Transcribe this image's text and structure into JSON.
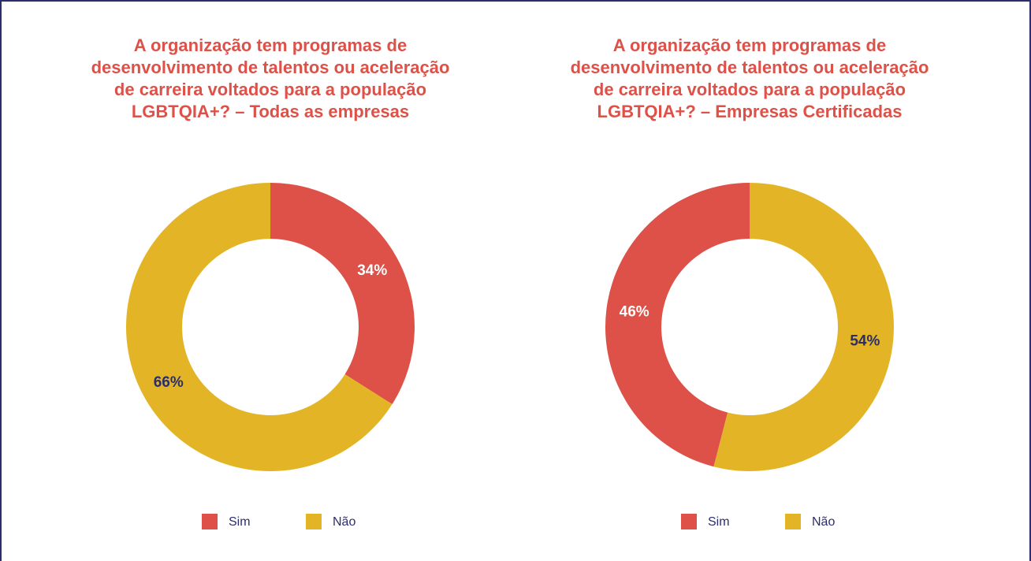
{
  "chart_data": [
    {
      "type": "pie",
      "title": "A organização tem programas de desenvolvimento de talentos ou aceleração de carreira voltados para a população LGBTQIA+? – Todas as empresas",
      "categories": [
        "Sim",
        "Não"
      ],
      "values": [
        34,
        66
      ],
      "value_labels": [
        "34%",
        "66%"
      ],
      "colors": [
        "#dd5148",
        "#e3b526"
      ],
      "label_colors": [
        "#ffffff",
        "#2b2e6b"
      ],
      "direction": "clockwise"
    },
    {
      "type": "pie",
      "title": "A organização tem programas de desenvolvimento de talentos ou aceleração de carreira voltados para a população LGBTQIA+? – Empresas Certificadas",
      "categories": [
        "Sim",
        "Não"
      ],
      "values": [
        46,
        54
      ],
      "value_labels": [
        "46%",
        "54%"
      ],
      "colors": [
        "#dd5148",
        "#e3b526"
      ],
      "label_colors": [
        "#ffffff",
        "#2b2e6b"
      ],
      "direction": "counterclockwise"
    }
  ]
}
